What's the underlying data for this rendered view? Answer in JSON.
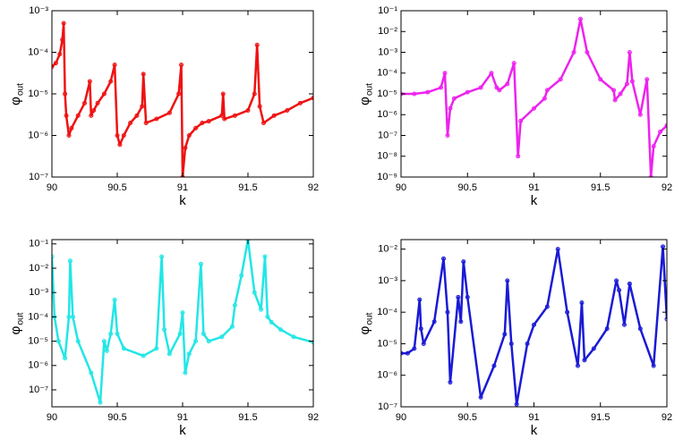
{
  "chart_data": [
    {
      "type": "line",
      "xlabel": "k",
      "ylabel": "φ",
      "ylabel_subscript": "out",
      "log_y": true,
      "color": "#ee1111",
      "xlim": [
        90,
        92
      ],
      "xticks": [
        90,
        90.5,
        91,
        91.5,
        92
      ],
      "ylim": [
        1e-07,
        0.001
      ],
      "yticks": [
        {
          "value": 1e-07,
          "label": "10⁻⁷"
        },
        {
          "value": 1e-06,
          "label": "10⁻⁶"
        },
        {
          "value": 1e-05,
          "label": "10⁻⁵"
        },
        {
          "value": 0.0001,
          "label": "10⁻⁴"
        },
        {
          "value": 0.001,
          "label": "10⁻³"
        }
      ],
      "x": [
        90,
        90.03,
        90.06,
        90.08,
        90.09,
        90.1,
        90.11,
        90.13,
        90.15,
        90.2,
        90.25,
        90.29,
        90.3,
        90.32,
        90.35,
        90.4,
        90.45,
        90.48,
        90.5,
        90.52,
        90.55,
        90.6,
        90.65,
        90.69,
        90.7,
        90.72,
        90.8,
        90.9,
        90.97,
        90.99,
        91.0,
        91.02,
        91.05,
        91.1,
        91.15,
        91.2,
        91.3,
        91.31,
        91.32,
        91.4,
        91.5,
        91.55,
        91.57,
        91.59,
        91.62,
        91.7,
        91.8,
        91.9,
        92
      ],
      "values": [
        4.5e-05,
        5.5e-05,
        9e-05,
        0.0002,
        0.0005,
        1e-05,
        3e-06,
        1e-06,
        1.5e-06,
        3e-06,
        6e-06,
        2e-05,
        3e-06,
        4e-06,
        6e-06,
        1e-05,
        2e-05,
        5e-05,
        1e-06,
        6e-07,
        1e-06,
        2e-06,
        3e-06,
        5e-06,
        3e-05,
        2e-06,
        2.5e-06,
        3.5e-06,
        1e-05,
        5e-05,
        1e-07,
        5e-07,
        1e-06,
        1.5e-06,
        2e-06,
        2.2e-06,
        3e-06,
        1e-05,
        2.5e-06,
        3e-06,
        4e-06,
        1e-05,
        0.00015,
        5e-06,
        2e-06,
        3e-06,
        4e-06,
        6e-06,
        8e-06
      ]
    },
    {
      "type": "line",
      "xlabel": "k",
      "ylabel": "φ",
      "ylabel_subscript": "out",
      "log_y": true,
      "color": "#ee22ee",
      "xlim": [
        90,
        92
      ],
      "xticks": [
        90,
        90.5,
        91,
        91.5,
        92
      ],
      "ylim": [
        1e-09,
        0.1
      ],
      "yticks": [
        {
          "value": 1e-09,
          "label": "10⁻⁹"
        },
        {
          "value": 1e-08,
          "label": "10⁻⁸"
        },
        {
          "value": 1e-07,
          "label": "10⁻⁷"
        },
        {
          "value": 1e-06,
          "label": "10⁻⁶"
        },
        {
          "value": 1e-05,
          "label": "10⁻⁵"
        },
        {
          "value": 0.0001,
          "label": "10⁻⁴"
        },
        {
          "value": 0.001,
          "label": "10⁻³"
        },
        {
          "value": 0.01,
          "label": "10⁻²"
        },
        {
          "value": 0.1,
          "label": "10⁻¹"
        }
      ],
      "x": [
        90,
        90.1,
        90.2,
        90.3,
        90.33,
        90.35,
        90.37,
        90.4,
        90.5,
        90.6,
        90.68,
        90.72,
        90.74,
        90.8,
        90.85,
        90.88,
        90.9,
        91.0,
        91.08,
        91.1,
        91.2,
        91.3,
        91.35,
        91.4,
        91.5,
        91.6,
        91.61,
        91.65,
        91.7,
        91.72,
        91.74,
        91.8,
        91.85,
        91.88,
        91.9,
        91.95,
        92
      ],
      "values": [
        1e-05,
        1e-05,
        1.2e-05,
        2e-05,
        0.0001,
        1e-07,
        2e-06,
        6e-06,
        1.2e-05,
        2e-05,
        0.0001,
        2e-05,
        1.5e-05,
        3e-05,
        0.0003,
        1e-08,
        5e-07,
        2e-06,
        6e-06,
        1.5e-05,
        5e-05,
        0.001,
        0.04,
        0.001,
        5e-05,
        1.5e-05,
        5e-06,
        1e-05,
        3e-05,
        0.001,
        4e-05,
        1e-06,
        5e-05,
        1e-09,
        3e-08,
        1.5e-07,
        3e-07
      ]
    },
    {
      "type": "line",
      "xlabel": "k",
      "ylabel": "φ",
      "ylabel_subscript": "out",
      "log_y": true,
      "color": "#22e6e6",
      "xlim": [
        90,
        92
      ],
      "xticks": [
        90,
        90.5,
        91,
        91.5,
        92
      ],
      "ylim": [
        2e-08,
        0.15
      ],
      "yticks": [
        {
          "value": 1e-07,
          "label": "10⁻⁷"
        },
        {
          "value": 1e-06,
          "label": "10⁻⁶"
        },
        {
          "value": 1e-05,
          "label": "10⁻⁵"
        },
        {
          "value": 0.0001,
          "label": "10⁻⁴"
        },
        {
          "value": 0.001,
          "label": "10⁻³"
        },
        {
          "value": 0.01,
          "label": "10⁻²"
        },
        {
          "value": 0.1,
          "label": "10⁻¹"
        }
      ],
      "x": [
        90,
        90.02,
        90.05,
        90.1,
        90.13,
        90.14,
        90.16,
        90.2,
        90.3,
        90.37,
        90.4,
        90.42,
        90.45,
        90.48,
        90.5,
        90.55,
        90.7,
        90.8,
        90.84,
        90.86,
        90.9,
        90.98,
        91.0,
        91.02,
        91.05,
        91.1,
        91.14,
        91.16,
        91.2,
        91.3,
        91.38,
        91.4,
        91.45,
        91.5,
        91.55,
        91.6,
        91.63,
        91.65,
        91.68,
        91.75,
        91.85,
        92
      ],
      "values": [
        0.03,
        0.0001,
        1e-05,
        2e-06,
        0.0001,
        0.02,
        0.0001,
        1e-05,
        5e-07,
        3e-08,
        1e-05,
        4e-06,
        2e-05,
        0.0005,
        2e-05,
        5e-06,
        2.5e-06,
        5e-06,
        0.03,
        3e-05,
        3e-06,
        2e-05,
        0.00015,
        5e-07,
        3e-06,
        1e-05,
        0.015,
        2e-05,
        1e-05,
        1.5e-05,
        4e-05,
        0.0003,
        0.005,
        0.15,
        0.001,
        0.0002,
        0.03,
        0.0001,
        6e-05,
        3e-05,
        1.5e-05,
        9e-06
      ]
    },
    {
      "type": "line",
      "xlabel": "k",
      "ylabel": "φ",
      "ylabel_subscript": "out",
      "log_y": true,
      "color": "#1a1ad6",
      "xlim": [
        90,
        92
      ],
      "xticks": [
        90,
        90.5,
        91,
        91.5,
        92
      ],
      "ylim": [
        1e-07,
        0.02
      ],
      "yticks": [
        {
          "value": 1e-07,
          "label": "10⁻⁷"
        },
        {
          "value": 1e-06,
          "label": "10⁻⁶"
        },
        {
          "value": 1e-05,
          "label": "10⁻⁵"
        },
        {
          "value": 0.0001,
          "label": "10⁻⁴"
        },
        {
          "value": 0.001,
          "label": "10⁻³"
        },
        {
          "value": 0.01,
          "label": "10⁻²"
        }
      ],
      "x": [
        90,
        90.05,
        90.1,
        90.14,
        90.15,
        90.17,
        90.25,
        90.32,
        90.35,
        90.37,
        90.43,
        90.45,
        90.47,
        90.5,
        90.6,
        90.7,
        90.78,
        90.8,
        90.83,
        90.87,
        90.95,
        91.0,
        91.1,
        91.18,
        91.25,
        91.33,
        91.36,
        91.38,
        91.45,
        91.55,
        91.62,
        91.64,
        91.68,
        91.72,
        91.8,
        91.9,
        91.97,
        92
      ],
      "values": [
        5e-06,
        5e-06,
        7e-06,
        0.00025,
        3e-05,
        1e-05,
        5e-05,
        0.005,
        0.0001,
        6e-07,
        0.0003,
        5e-05,
        0.004,
        0.0003,
        2e-07,
        2e-06,
        2e-05,
        0.001,
        1e-05,
        1.2e-07,
        1e-05,
        4e-05,
        0.00015,
        0.01,
        0.0001,
        2e-06,
        0.0002,
        3e-06,
        7e-06,
        3e-05,
        0.001,
        0.0005,
        4e-05,
        0.0008,
        3e-05,
        2e-06,
        0.012,
        6e-05
      ]
    }
  ]
}
